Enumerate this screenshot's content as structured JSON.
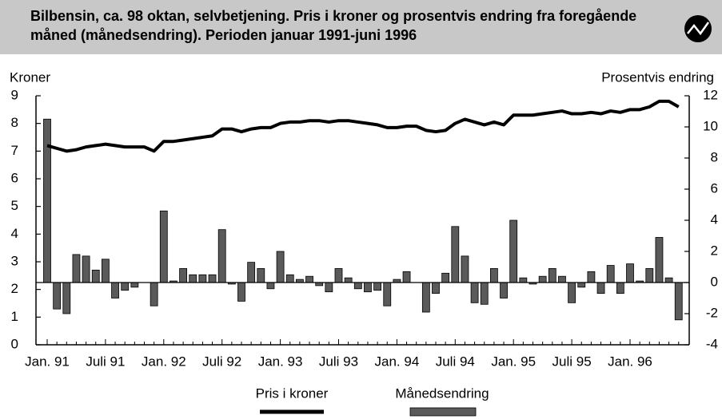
{
  "chart_data": {
    "type": "bar-line",
    "title": "Bilbensin, ca. 98 oktan, selvbetjening. Pris i kroner og prosentvis endring fra foregående måned (månedsendring). Perioden januar 1991-juni 1996",
    "y_label": "Kroner",
    "y2_label": "Prosentvis endring",
    "categories": [
      "Jan. 91",
      null,
      null,
      null,
      null,
      null,
      "Juli 91",
      null,
      null,
      null,
      null,
      null,
      "Jan. 92",
      null,
      null,
      null,
      null,
      null,
      "Juli 92",
      null,
      null,
      null,
      null,
      null,
      "Jan. 93",
      null,
      null,
      null,
      null,
      null,
      "Juli 93",
      null,
      null,
      null,
      null,
      null,
      "Jan. 94",
      null,
      null,
      null,
      null,
      null,
      "Juli 94",
      null,
      null,
      null,
      null,
      null,
      "Jan. 95",
      null,
      null,
      null,
      null,
      null,
      "Juli 95",
      null,
      null,
      null,
      null,
      null,
      "Jan. 96",
      null,
      null,
      null,
      null,
      null
    ],
    "series": [
      {
        "name": "Pris i kroner",
        "type": "line",
        "color": "#000000",
        "axis": "y",
        "values": [
          7.2,
          7.1,
          7.0,
          7.05,
          7.15,
          7.2,
          7.25,
          7.2,
          7.15,
          7.15,
          7.15,
          7.0,
          7.35,
          7.35,
          7.4,
          7.45,
          7.5,
          7.55,
          7.8,
          7.8,
          7.7,
          7.8,
          7.85,
          7.85,
          8.0,
          8.05,
          8.05,
          8.1,
          8.1,
          8.05,
          8.1,
          8.1,
          8.05,
          8.0,
          7.95,
          7.85,
          7.85,
          7.9,
          7.9,
          7.75,
          7.7,
          7.75,
          8.0,
          8.15,
          8.05,
          7.95,
          8.05,
          7.95,
          8.3,
          8.3,
          8.3,
          8.35,
          8.4,
          8.45,
          8.35,
          8.35,
          8.4,
          8.35,
          8.45,
          8.4,
          8.5,
          8.5,
          8.6,
          8.8,
          8.8,
          8.6
        ]
      },
      {
        "name": "Månedsendring",
        "type": "bar",
        "color": "#5a5a5a",
        "axis": "y2",
        "values": [
          10.5,
          -1.7,
          -2.0,
          1.8,
          1.7,
          0.8,
          1.5,
          -1.0,
          -0.5,
          -0.3,
          0,
          -1.5,
          4.6,
          0.1,
          0.9,
          0.5,
          0.5,
          0.5,
          3.4,
          -0.1,
          -1.2,
          1.3,
          0.9,
          -0.4,
          2.0,
          0.5,
          0.2,
          0.4,
          -0.2,
          -0.6,
          0.9,
          0.3,
          -0.4,
          -0.6,
          -0.5,
          -1.5,
          0.2,
          0.7,
          0,
          -1.9,
          -0.7,
          0.6,
          3.6,
          1.7,
          -1.3,
          -1.4,
          0.9,
          -1.0,
          4.0,
          0.3,
          -0.1,
          0.4,
          0.9,
          0.4,
          -1.3,
          -0.3,
          0.7,
          -0.7,
          1.1,
          -0.7,
          1.2,
          0.1,
          0.9,
          2.9,
          0.3,
          -2.4
        ]
      }
    ],
    "ylim": [
      0,
      9
    ],
    "yticks": [
      0,
      1,
      2,
      3,
      4,
      5,
      6,
      7,
      8,
      9
    ],
    "y2lim": [
      -4,
      12
    ],
    "y2ticks": [
      -4,
      -2,
      0,
      2,
      4,
      6,
      8,
      10,
      12
    ],
    "grid": false
  }
}
